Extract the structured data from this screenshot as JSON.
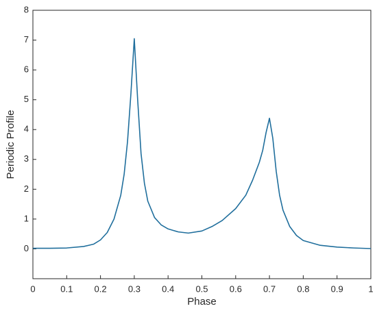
{
  "chart_data": {
    "type": "line",
    "x_label": "Phase",
    "y_label": "Periodic Profile",
    "x": [
      0,
      0.05,
      0.1,
      0.15,
      0.18,
      0.2,
      0.22,
      0.24,
      0.26,
      0.27,
      0.28,
      0.29,
      0.3,
      0.31,
      0.32,
      0.33,
      0.34,
      0.36,
      0.38,
      0.4,
      0.43,
      0.46,
      0.5,
      0.53,
      0.56,
      0.6,
      0.63,
      0.65,
      0.67,
      0.68,
      0.69,
      0.7,
      0.71,
      0.72,
      0.73,
      0.74,
      0.76,
      0.78,
      0.8,
      0.85,
      0.9,
      0.95,
      1
    ],
    "series": [
      {
        "color": "#1f6e9c",
        "values": [
          0.02,
          0.02,
          0.03,
          0.08,
          0.16,
          0.3,
          0.55,
          1.0,
          1.8,
          2.5,
          3.6,
          5.2,
          7.05,
          5.0,
          3.2,
          2.2,
          1.6,
          1.05,
          0.8,
          0.67,
          0.57,
          0.53,
          0.6,
          0.75,
          0.95,
          1.35,
          1.8,
          2.3,
          2.9,
          3.3,
          3.9,
          4.38,
          3.7,
          2.6,
          1.8,
          1.3,
          0.75,
          0.45,
          0.28,
          0.12,
          0.06,
          0.03,
          0.01
        ]
      }
    ],
    "xlim": [
      0,
      1
    ],
    "xticks": [
      0,
      0.1,
      0.2,
      0.3,
      0.4,
      0.5,
      0.6,
      0.7,
      0.8,
      0.9,
      1
    ],
    "ylim": [
      -1,
      8
    ],
    "yticks": [
      0,
      1,
      2,
      3,
      4,
      5,
      6,
      7,
      8
    ]
  }
}
